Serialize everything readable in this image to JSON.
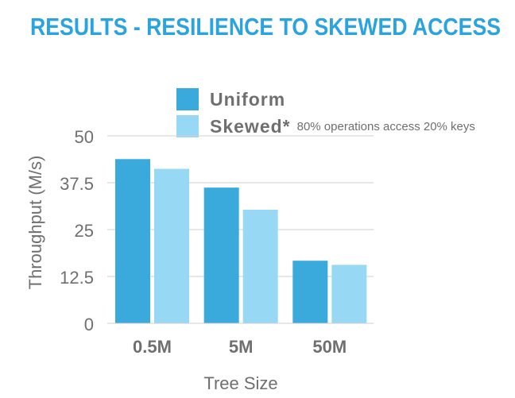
{
  "slide": {
    "title": "RESULTS - RESILIENCE TO SKEWED ACCESS"
  },
  "colors": {
    "title": "#2aa3df",
    "uniform": "#3aaadc",
    "skewed": "#97d9f4",
    "grid": "#cfcfcf",
    "text": "#6f6f6f"
  },
  "chart_data": {
    "type": "bar",
    "title": "",
    "xlabel": "Tree Size",
    "ylabel": "Throughput (M/s)",
    "categories": [
      "0.5M",
      "5M",
      "50M"
    ],
    "ylim": [
      0,
      50
    ],
    "yticks": [
      "0",
      "12.5",
      "25",
      "37.5",
      "50"
    ],
    "grid": true,
    "legend_position": "top",
    "series": [
      {
        "name": "Uniform",
        "values": [
          43.8,
          36.2,
          16.7
        ]
      },
      {
        "name": "Skewed*",
        "values": [
          41.2,
          30.3,
          15.6
        ]
      }
    ],
    "annotations": {
      "skewed_note": "80% operations access 20% keys"
    }
  }
}
